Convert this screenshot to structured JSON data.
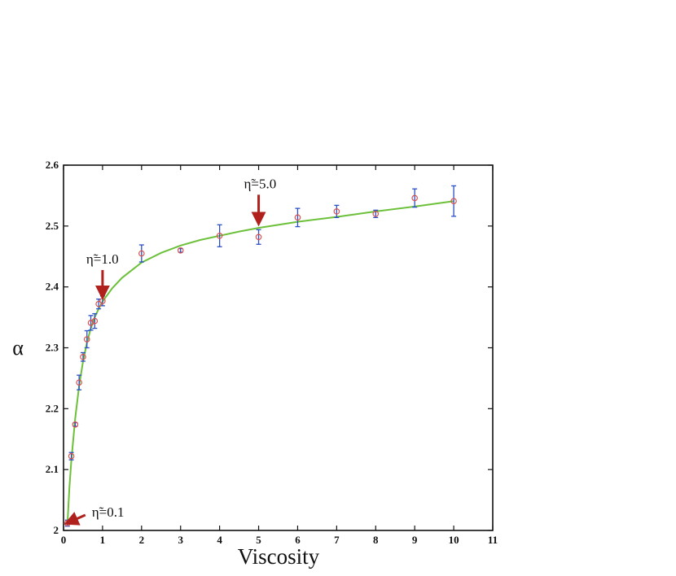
{
  "chart_data": {
    "type": "scatter",
    "xlabel": "Viscosity",
    "ylabel": "α",
    "xlim": [
      0,
      11
    ],
    "ylim": [
      2.0,
      2.6
    ],
    "xticks": [
      "0",
      "1",
      "2",
      "3",
      "4",
      "5",
      "6",
      "7",
      "8",
      "9",
      "10",
      "11"
    ],
    "yticks": [
      "2",
      "2.1",
      "2.2",
      "2.3",
      "2.4",
      "2.5",
      "2.6"
    ],
    "grid": false,
    "colors": {
      "marker": "#d9534f",
      "errorbar": "#2b4fc7",
      "fit": "#6cc03a",
      "arrow": "#b0201c",
      "frame": "#111111"
    },
    "series": [
      {
        "x": [
          0.1,
          0.2,
          0.3,
          0.4,
          0.5,
          0.6,
          0.7,
          0.8,
          0.9,
          1.0,
          2,
          3,
          4,
          5,
          6,
          7,
          8,
          9,
          10
        ],
        "y": [
          2.012,
          2.122,
          2.174,
          2.243,
          2.285,
          2.314,
          2.341,
          2.344,
          2.372,
          2.377,
          2.455,
          2.46,
          2.484,
          2.482,
          2.514,
          2.524,
          2.52,
          2.546,
          2.541
        ],
        "err": [
          0.005,
          0.006,
          0.003,
          0.012,
          0.007,
          0.014,
          0.012,
          0.012,
          0.008,
          0.008,
          0.014,
          0.003,
          0.018,
          0.012,
          0.015,
          0.01,
          0.006,
          0.015,
          0.025
        ]
      }
    ],
    "fit": {
      "x": [
        0.1,
        0.15,
        0.2,
        0.3,
        0.4,
        0.5,
        0.6,
        0.7,
        0.8,
        0.9,
        1.0,
        1.25,
        1.5,
        2,
        2.5,
        3,
        3.5,
        4,
        4.5,
        5,
        6,
        7,
        8,
        9,
        10
      ],
      "y": [
        2.01,
        2.07,
        2.115,
        2.185,
        2.238,
        2.278,
        2.308,
        2.332,
        2.35,
        2.364,
        2.376,
        2.398,
        2.415,
        2.44,
        2.456,
        2.468,
        2.477,
        2.484,
        2.491,
        2.497,
        2.507,
        2.515,
        2.524,
        2.532,
        2.541
      ]
    },
    "annotations": [
      {
        "text": "η̃=5.0",
        "x": 5.0,
        "y": 2.498
      },
      {
        "text": "η̃=1.0",
        "x": 1.0,
        "y": 2.377
      },
      {
        "text": "η̃=0.1",
        "x": 0.1,
        "y": 2.012
      }
    ]
  }
}
